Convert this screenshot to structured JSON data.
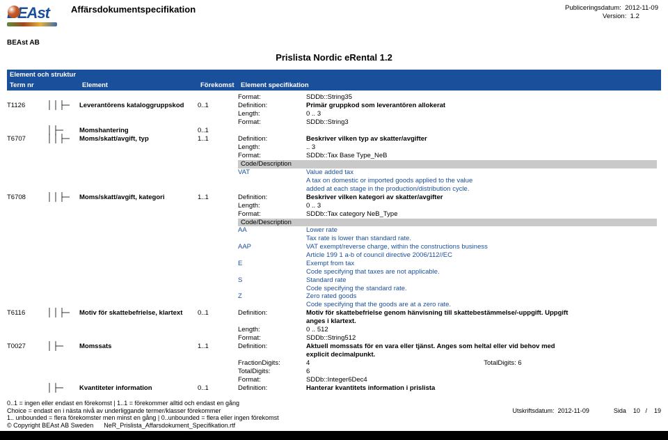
{
  "header": {
    "doc_title": "Affärsdokumentspecifikation",
    "pub_label": "Publiceringsdatum:",
    "pub_date": "2012-11-09",
    "version_label": "Version:",
    "version": "1.2",
    "company": "BEAst AB",
    "logo_text": "BEAst"
  },
  "subtitle": "Prislista Nordic eRental 1.2",
  "table_header": {
    "section": "Element och struktur",
    "c1": "Term nr",
    "c2": "Element",
    "c3": "Förekomst",
    "c4": "Element specifikation"
  },
  "spec_labels": {
    "format": "Format:",
    "definition": "Definition:",
    "length": "Length:",
    "code_desc": "Code/Description",
    "fraction": "FractionDigits:",
    "totaldig": "TotalDigits:",
    "totaldig2": "TotalDigits:"
  },
  "rows": [
    {
      "term": "",
      "tree": "",
      "name": "",
      "forek": "",
      "lab": "Format:",
      "val": "SDDb::String35"
    },
    {
      "term": "T1126",
      "tree": "b3",
      "name": "Leverantörens kataloggruppskod",
      "forek": "0..1",
      "lab": "Definition:",
      "val": "Primär gruppkod som leverantören allokerat",
      "bold": true
    },
    {
      "term": "",
      "tree": "",
      "name": "",
      "forek": "",
      "lab": "Length:",
      "val": "0  ..  3"
    },
    {
      "term": "",
      "tree": "",
      "name": "",
      "forek": "",
      "lab": "Format:",
      "val": "SDDb::String3"
    },
    {
      "term": "",
      "tree": "b2",
      "name": "Momshantering",
      "forek": "0..1",
      "lab": "",
      "val": ""
    },
    {
      "term": "T6707",
      "tree": "b3",
      "name": "Moms/skatt/avgift, typ",
      "forek": "1..1",
      "lab": "Definition:",
      "val": "Beskriver vilken typ av skatter/avgifter",
      "bold": true
    },
    {
      "term": "",
      "tree": "",
      "name": "",
      "forek": "",
      "lab": "Length:",
      "val": "  ..  3"
    },
    {
      "term": "",
      "tree": "",
      "name": "",
      "forek": "",
      "lab": "Format:",
      "val": "SDDb::Tax Base Type_NeB"
    }
  ],
  "code1": {
    "items": [
      {
        "k": "VAT",
        "v": "Value added tax"
      },
      {
        "k": "",
        "v": "A tax on domestic or imported goods applied to the value"
      },
      {
        "k": "",
        "v": "added at each stage in the production/distribution cycle."
      }
    ]
  },
  "rows2": [
    {
      "term": "T6708",
      "tree": "b3",
      "name": "Moms/skatt/avgift, kategori",
      "forek": "1..1",
      "lab": "Definition:",
      "val": "Beskriver vilken kategori av skatter/avgifter",
      "bold": true
    },
    {
      "term": "",
      "tree": "",
      "name": "",
      "forek": "",
      "lab": "Length:",
      "val": "0  ..  3"
    },
    {
      "term": "",
      "tree": "",
      "name": "",
      "forek": "",
      "lab": "Format:",
      "val": "SDDb::Tax category NeB_Type"
    }
  ],
  "code2": {
    "items": [
      {
        "k": "AA",
        "v": "Lower rate"
      },
      {
        "k": "",
        "v": "Tax rate is lower than standard rate."
      },
      {
        "k": "AAP",
        "v": "VAT exempt/reverse charge, within the constructions business"
      },
      {
        "k": "",
        "v": "Article 199 1 a-b of council directive 2006/112//EC"
      },
      {
        "k": "E",
        "v": "Exempt from tax"
      },
      {
        "k": "",
        "v": "Code specifying that taxes are not applicable."
      },
      {
        "k": "S",
        "v": "Standard rate"
      },
      {
        "k": "",
        "v": "Code specifying the standard rate."
      },
      {
        "k": "Z",
        "v": "Zero rated goods"
      },
      {
        "k": "",
        "v": "Code specifying that the goods are at a zero rate."
      }
    ]
  },
  "rows3": [
    {
      "term": "T6116",
      "tree": "b3",
      "name": "Motiv för skattebefrielse, klartext",
      "forek": "0..1",
      "lab": "Definition:",
      "val": "Motiv för skattebefrielse genom hänvisning till skattebestämmelse/-uppgift. Uppgift",
      "bold": true
    },
    {
      "term": "",
      "tree": "",
      "name": "",
      "forek": "",
      "lab": "",
      "val": "anges i klartext.",
      "bold": true
    },
    {
      "term": "",
      "tree": "",
      "name": "",
      "forek": "",
      "lab": "Length:",
      "val": "0  ..  512"
    },
    {
      "term": "",
      "tree": "",
      "name": "",
      "forek": "",
      "lab": "Format:",
      "val": "SDDb::String512"
    },
    {
      "term": "T0027",
      "tree": "b2",
      "name": "Momssats",
      "forek": "1..1",
      "lab": "Definition:",
      "val": "Aktuell momssats för en vara eller tjänst. Anges som heltal eller vid behov med",
      "bold": true
    },
    {
      "term": "",
      "tree": "",
      "name": "",
      "forek": "",
      "lab": "",
      "val": "explicit decimalpunkt.",
      "bold": true
    }
  ],
  "fraction_row": {
    "lab": "FractionDigits:",
    "val": "4",
    "lab2": "TotalDigits:",
    "val2": "6"
  },
  "rows4": [
    {
      "term": "",
      "tree": "",
      "name": "",
      "forek": "",
      "lab": "TotalDigits:",
      "val": "6"
    },
    {
      "term": "",
      "tree": "",
      "name": "",
      "forek": "",
      "lab": "Format:",
      "val": "SDDb::Integer6Dec4"
    },
    {
      "term": "",
      "tree": "b2",
      "name": "Kvantiteter information",
      "forek": "0..1",
      "lab": "Definition:",
      "val": "Hanterar kvantitets information i prislista",
      "bold": true
    }
  ],
  "footer": {
    "l1": "0..1 = ingen eller endast en förekomst | 1..1 = förekommer alltid och endast en gång",
    "l2": "Choice = endast en i nästa nivå av underliggande termer/klasser förekommer",
    "l3": "1.. unbounded = flera förekomster men minst en gång | 0..unbounded = flera eller ingen förekomst",
    "l4a": "© Copyright BEAst AB Sweden",
    "l4b": "NeR_Prislista_Affarsdokument_Specifikation.rtf",
    "r1_label": "Utskriftsdatum:",
    "r1_val": "2012-11-09",
    "page_label": "Sida",
    "page_cur": "10",
    "page_sep": "/",
    "page_tot": "19"
  },
  "colors": {
    "blue": "#1a4f9c",
    "grey": "#c9c9c9",
    "code_text": "#1a4f9c"
  }
}
